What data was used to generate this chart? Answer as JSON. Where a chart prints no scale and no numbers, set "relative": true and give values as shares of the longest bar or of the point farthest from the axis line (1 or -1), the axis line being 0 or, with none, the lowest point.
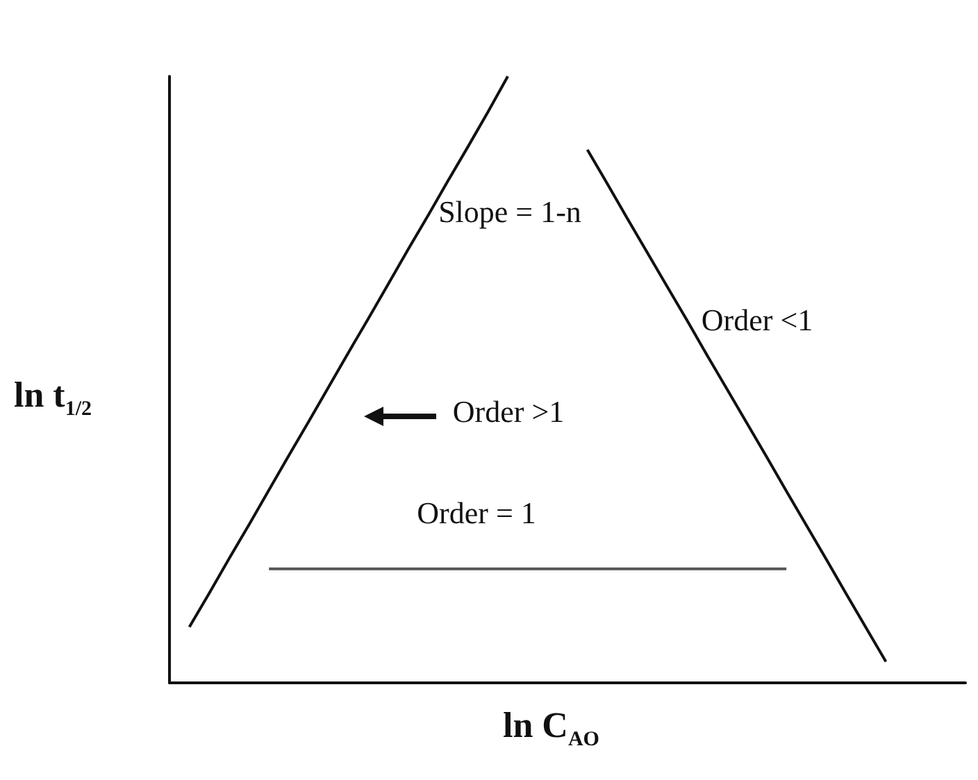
{
  "chart_data": {
    "type": "line",
    "relative": true,
    "xlabel": "ln C$_{AO}$",
    "ylabel": "ln t$_{1/2}$",
    "marker": "none",
    "categories": [
      null,
      null,
      null,
      null,
      null,
      null,
      null,
      null,
      null,
      null,
      null,
      null,
      null,
      null,
      null,
      null,
      null,
      null,
      null,
      null,
      null,
      null,
      null,
      null,
      null,
      null,
      null,
      null,
      null,
      null,
      null,
      null,
      null,
      null,
      null,
      null,
      null,
      null,
      null,
      null,
      null
    ],
    "series": [
      {
        "color": "#111111",
        "values": [
          null,
          0.092,
          0.148,
          0.205,
          0.261,
          0.318,
          0.375,
          0.431,
          0.488,
          0.545,
          0.601,
          0.658,
          0.715,
          0.771,
          0.828,
          0.884,
          0.941,
          1,
          null,
          null,
          null,
          null,
          null,
          null,
          null,
          null,
          null,
          null,
          null,
          null,
          null,
          null,
          null,
          null,
          null,
          null,
          null,
          null,
          null,
          null,
          null
        ]
      },
      {
        "color": "#111111",
        "values": [
          null,
          null,
          null,
          null,
          null,
          null,
          null,
          null,
          null,
          null,
          null,
          null,
          null,
          null,
          null,
          null,
          null,
          null,
          null,
          null,
          null,
          0.879,
          0.823,
          0.766,
          0.71,
          0.654,
          0.598,
          0.541,
          0.485,
          0.429,
          0.373,
          0.316,
          0.26,
          0.204,
          0.147,
          0.091,
          0.035,
          null,
          null,
          null,
          null
        ]
      },
      {
        "color": "#555555",
        "values": [
          null,
          null,
          null,
          null,
          null,
          0.188,
          0.188,
          0.188,
          0.188,
          0.188,
          0.188,
          0.188,
          0.188,
          0.188,
          0.188,
          0.188,
          0.188,
          0.188,
          0.188,
          0.188,
          0.188,
          0.188,
          0.188,
          0.188,
          0.188,
          0.188,
          0.188,
          0.188,
          0.188,
          0.188,
          0.188,
          0.188,
          null,
          null,
          null,
          null,
          null,
          null,
          null,
          null,
          null
        ]
      }
    ],
    "annotations": [
      "Slope = 1-n",
      "Order <1",
      "Order >1",
      "Order = 1"
    ]
  }
}
